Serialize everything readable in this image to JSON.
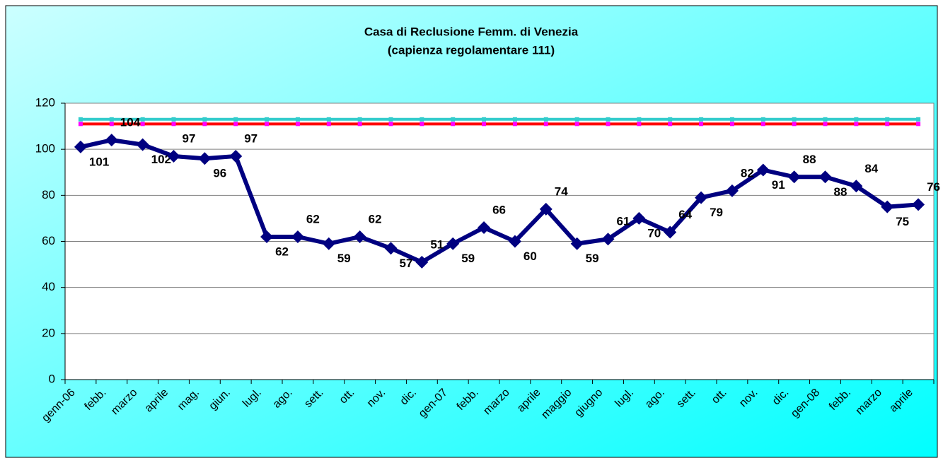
{
  "chart_data": {
    "type": "line",
    "title": "Casa di Reclusione Femm. di Venezia",
    "subtitle": "(capienza regolamentare 111)",
    "categories": [
      "genn-06",
      "febb.",
      "marzo",
      "aprile",
      "mag.",
      "giun.",
      "lugl.",
      "ago.",
      "sett.",
      "ott.",
      "nov.",
      "dic.",
      "gen-07",
      "febb.",
      "marzo",
      "aprile",
      "maggio",
      "giugno",
      "lugl.",
      "ago.",
      "sett.",
      "ott.",
      "nov.",
      "dic.",
      "gen-08",
      "febb.",
      "marzo",
      "aprile"
    ],
    "series": [
      {
        "color": "#000080",
        "marker_color": "#000080",
        "values": [
          101,
          104,
          102,
          97,
          96,
          97,
          62,
          62,
          59,
          62,
          57,
          51,
          59,
          66,
          60,
          74,
          59,
          61,
          70,
          64,
          79,
          82,
          91,
          88,
          88,
          84,
          75,
          76
        ],
        "data_labels": true
      },
      {
        "color": "#33cccc",
        "marker_color": "#33cccc",
        "values": [
          113,
          113,
          113,
          113,
          113,
          113,
          113,
          113,
          113,
          113,
          113,
          113,
          113,
          113,
          113,
          113,
          113,
          113,
          113,
          113,
          113,
          113,
          113,
          113,
          113,
          113,
          113,
          113
        ]
      },
      {
        "color": "#ff0000",
        "marker_color": "#ff00ff",
        "values": [
          111,
          111,
          111,
          111,
          111,
          111,
          111,
          111,
          111,
          111,
          111,
          111,
          111,
          111,
          111,
          111,
          111,
          111,
          111,
          111,
          111,
          111,
          111,
          111,
          111,
          111,
          111,
          111
        ]
      }
    ],
    "ylim": [
      0,
      120
    ],
    "yticks": [
      0,
      20,
      40,
      60,
      80,
      100,
      120
    ],
    "grid": true
  }
}
